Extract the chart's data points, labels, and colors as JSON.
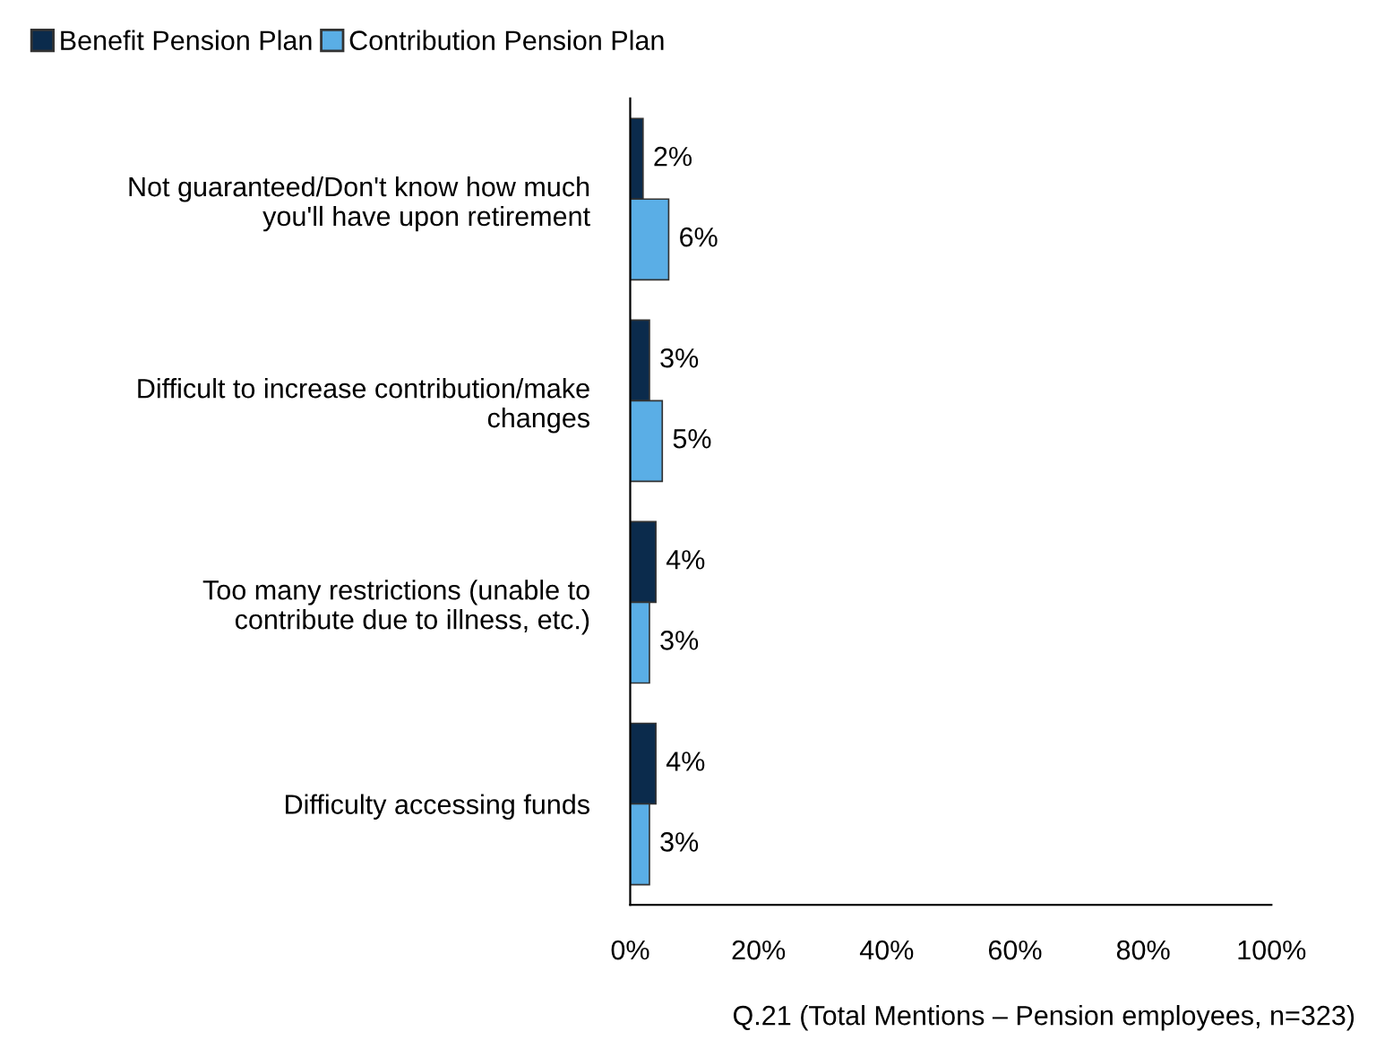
{
  "chart_data": {
    "type": "bar",
    "orientation": "horizontal",
    "categories": [
      "Not guaranteed/Don't know how much\nyou'll have upon retirement",
      "Difficult to increase contribution/make\nchanges",
      "Too many restrictions (unable to\ncontribute due to illness, etc.)",
      "Difficulty accessing funds"
    ],
    "series": [
      {
        "name": "Benefit Pension Plan",
        "color": "#0b2b4c",
        "values": [
          2,
          3,
          4,
          4
        ],
        "value_labels": [
          "2%",
          "3%",
          "4%",
          "4%"
        ]
      },
      {
        "name": "Contribution Pension Plan",
        "color": "#5aaee6",
        "values": [
          6,
          5,
          3,
          3
        ],
        "value_labels": [
          "6%",
          "5%",
          "3%",
          "3%"
        ]
      }
    ],
    "xlim": [
      0,
      100
    ],
    "xticks": [
      {
        "value": 0,
        "label": "0%"
      },
      {
        "value": 20,
        "label": "20%"
      },
      {
        "value": 40,
        "label": "40%"
      },
      {
        "value": 60,
        "label": "60%"
      },
      {
        "value": 80,
        "label": "80%"
      },
      {
        "value": 100,
        "label": "100%"
      }
    ],
    "grid": false,
    "legend": "top left",
    "annotations": [
      "Q.21 (Total Mentions – Pension employees, n=323)"
    ]
  }
}
